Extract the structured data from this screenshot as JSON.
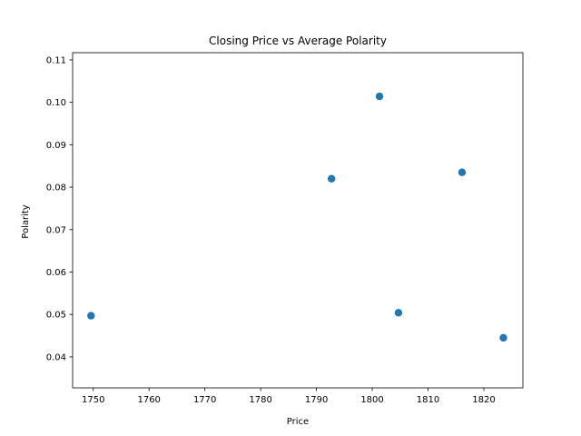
{
  "chart_data": {
    "type": "scatter",
    "title": "Closing Price vs Average Polarity",
    "xlabel": "Price",
    "ylabel": "Polarity",
    "xlim": [
      1746.3,
      1827.0
    ],
    "ylim": [
      0.0327,
      0.1117
    ],
    "xticks": [
      1750,
      1760,
      1770,
      1780,
      1790,
      1800,
      1810,
      1820
    ],
    "yticks": [
      0.04,
      0.05,
      0.06,
      0.07,
      0.08,
      0.09,
      0.1,
      0.11
    ],
    "xtick_labels": [
      "1750",
      "1760",
      "1770",
      "1780",
      "1790",
      "1800",
      "1810",
      "1820"
    ],
    "ytick_labels": [
      "0.04",
      "0.05",
      "0.06",
      "0.07",
      "0.08",
      "0.09",
      "0.10",
      "0.11"
    ],
    "grid": false,
    "legend": "none",
    "marker_color": "#1f77b4",
    "points": [
      {
        "x": 1749.6,
        "y": 0.0497
      },
      {
        "x": 1792.7,
        "y": 0.082
      },
      {
        "x": 1801.3,
        "y": 0.1014
      },
      {
        "x": 1804.7,
        "y": 0.0504
      },
      {
        "x": 1816.1,
        "y": 0.0835
      },
      {
        "x": 1823.5,
        "y": 0.0445
      }
    ]
  }
}
